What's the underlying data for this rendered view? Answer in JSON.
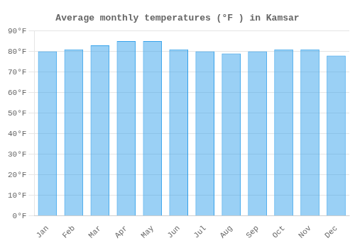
{
  "chart_data": {
    "type": "bar",
    "title": "Average monthly temperatures (°F ) in Kamsar",
    "categories": [
      "Jan",
      "Feb",
      "Mar",
      "Apr",
      "May",
      "Jun",
      "Jul",
      "Aug",
      "Sep",
      "Oct",
      "Nov",
      "Dec"
    ],
    "values": [
      80,
      81,
      83,
      85,
      85,
      81,
      80,
      79,
      80,
      81,
      81,
      78
    ],
    "ylim": [
      0,
      90
    ],
    "yticks": [
      {
        "value": 0,
        "label": "0°F"
      },
      {
        "value": 10,
        "label": "10°F"
      },
      {
        "value": 20,
        "label": "20°F"
      },
      {
        "value": 30,
        "label": "30°F"
      },
      {
        "value": 40,
        "label": "40°F"
      },
      {
        "value": 50,
        "label": "50°F"
      },
      {
        "value": 60,
        "label": "60°F"
      },
      {
        "value": 70,
        "label": "70°F"
      },
      {
        "value": 80,
        "label": "80°F"
      },
      {
        "value": 90,
        "label": "90°F"
      }
    ],
    "grid": true
  }
}
